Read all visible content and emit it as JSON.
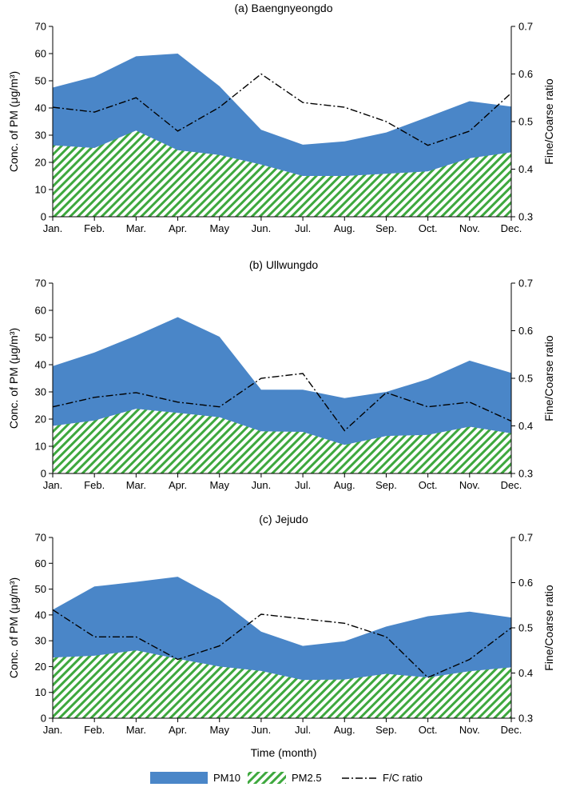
{
  "figure": {
    "xlabel": "Time (month)",
    "legend": [
      {
        "key": "pm10",
        "label": "PM10"
      },
      {
        "key": "pm25",
        "label": "PM2.5"
      },
      {
        "key": "fc",
        "label": "F/C ratio"
      }
    ]
  },
  "colors": {
    "pm10": "#4a86c8",
    "pm25_stripe": "#3ea83e",
    "pm25_bg": "#ffffff",
    "fc": "#000000",
    "axis": "#000000"
  },
  "chart_data": [
    {
      "type": "area",
      "title": "(a) Baengnyeongdo",
      "categories": [
        "Jan.",
        "Feb.",
        "Mar.",
        "Apr.",
        "May",
        "Jun.",
        "Jul.",
        "Aug.",
        "Sep.",
        "Oct.",
        "Nov.",
        "Dec."
      ],
      "ylabel": "Conc. of PM (μg/m³)",
      "y2label": "Fine/Coarse ratio",
      "ylim": [
        0,
        70
      ],
      "yticks": [
        0,
        10,
        20,
        30,
        40,
        50,
        60,
        70
      ],
      "y2lim": [
        0.3,
        0.7
      ],
      "y2ticks": [
        "0.3",
        "0.4",
        "0.5",
        "0.6",
        "0.7"
      ],
      "series": [
        {
          "name": "PM10",
          "axis": "left",
          "values": [
            47.5,
            51.5,
            59,
            60,
            48,
            32,
            26.5,
            27.7,
            31,
            36.7,
            42.5,
            40.5
          ]
        },
        {
          "name": "PM2.5",
          "axis": "left",
          "values": [
            26.3,
            25.3,
            31.7,
            24.5,
            22.7,
            19.2,
            15,
            15,
            15.8,
            16.7,
            21.5,
            23.7
          ]
        },
        {
          "name": "F/C ratio",
          "axis": "right",
          "values": [
            0.53,
            0.52,
            0.55,
            0.48,
            0.53,
            0.6,
            0.54,
            0.53,
            0.5,
            0.45,
            0.48,
            0.56
          ]
        }
      ]
    },
    {
      "type": "area",
      "title": "(b) Ullwungdo",
      "categories": [
        "Jan.",
        "Feb.",
        "Mar.",
        "Apr.",
        "May",
        "Jun.",
        "Jul.",
        "Aug.",
        "Sep.",
        "Oct.",
        "Nov.",
        "Dec."
      ],
      "ylabel": "Conc. of PM (μg/m³)",
      "y2label": "Fine/Coarse ratio",
      "ylim": [
        0,
        70
      ],
      "yticks": [
        0,
        10,
        20,
        30,
        40,
        50,
        60,
        70
      ],
      "y2lim": [
        0.3,
        0.7
      ],
      "y2ticks": [
        "0.3",
        "0.4",
        "0.5",
        "0.6",
        "0.7"
      ],
      "series": [
        {
          "name": "PM10",
          "axis": "left",
          "values": [
            39.5,
            44.5,
            50.7,
            57.5,
            50.3,
            30.8,
            30.8,
            27.7,
            30,
            34.7,
            41.5,
            37
          ]
        },
        {
          "name": "PM2.5",
          "axis": "left",
          "values": [
            17.5,
            19.5,
            23.8,
            22.3,
            20.7,
            15.5,
            15.3,
            10.5,
            13.8,
            14.2,
            17.2,
            14.8
          ]
        },
        {
          "name": "F/C ratio",
          "axis": "right",
          "values": [
            0.44,
            0.46,
            0.47,
            0.45,
            0.44,
            0.5,
            0.51,
            0.39,
            0.47,
            0.44,
            0.45,
            0.41
          ]
        }
      ]
    },
    {
      "type": "area",
      "title": "(c) Jejudo",
      "categories": [
        "Jan.",
        "Feb.",
        "Mar.",
        "Apr.",
        "May",
        "Jun.",
        "Jul.",
        "Aug.",
        "Sep.",
        "Oct.",
        "Nov.",
        "Dec."
      ],
      "ylabel": "Conc. of PM (μg/m³)",
      "y2label": "Fine/Coarse ratio",
      "ylim": [
        0,
        70
      ],
      "yticks": [
        0,
        10,
        20,
        30,
        40,
        50,
        60,
        70
      ],
      "y2lim": [
        0.3,
        0.7
      ],
      "y2ticks": [
        "0.3",
        "0.4",
        "0.5",
        "0.6",
        "0.7"
      ],
      "series": [
        {
          "name": "PM10",
          "axis": "left",
          "values": [
            42,
            51,
            52.8,
            54.8,
            46,
            33.5,
            28,
            29.8,
            35.5,
            39.5,
            41.3,
            39
          ]
        },
        {
          "name": "PM2.5",
          "axis": "left",
          "values": [
            23.5,
            24.2,
            26.3,
            23,
            20,
            18.3,
            14.8,
            15,
            17.2,
            15.8,
            18.2,
            19.7
          ]
        },
        {
          "name": "F/C ratio",
          "axis": "right",
          "values": [
            0.54,
            0.48,
            0.48,
            0.43,
            0.46,
            0.53,
            0.52,
            0.51,
            0.48,
            0.39,
            0.43,
            0.5
          ]
        }
      ]
    }
  ]
}
